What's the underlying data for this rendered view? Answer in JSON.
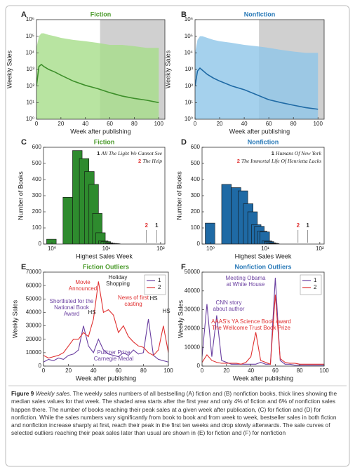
{
  "chart_data": [
    {
      "type": "line",
      "label": "A",
      "title": "Fiction",
      "title_color": "#4a9a2a",
      "xlabel": "Week after publishing",
      "ylabel": "Weekly Sales",
      "x": [
        0,
        2,
        4,
        6,
        10,
        15,
        20,
        30,
        40,
        50,
        60,
        70,
        80,
        90,
        100
      ],
      "median": [
        100,
        1500,
        2000,
        1500,
        1000,
        700,
        450,
        200,
        110,
        70,
        40,
        25,
        18,
        14,
        10
      ],
      "band": {
        "upper": [
          20000,
          100000,
          150000,
          150000,
          120000,
          100000,
          80000,
          60000,
          50000,
          40000,
          30000,
          30000,
          25000,
          20000,
          20000
        ],
        "lower": [
          1,
          1,
          1,
          1,
          1,
          1,
          1,
          1,
          1,
          1,
          1,
          1,
          1,
          1,
          1
        ]
      },
      "color": "#3d8f2a",
      "band_color": "#a6dd8a",
      "shade_from": 52,
      "shade_color": "#d0d0d0",
      "ylog": true,
      "xlim": [
        0,
        105
      ],
      "ylim": [
        1,
        1000000
      ],
      "xticks": [
        0,
        20,
        40,
        60,
        80,
        100
      ],
      "yticks": [
        {
          "value": 1,
          "label": "10⁰"
        },
        {
          "value": 10,
          "label": "10¹"
        },
        {
          "value": 100,
          "label": "10²"
        },
        {
          "value": 1000,
          "label": "10³"
        },
        {
          "value": 10000,
          "label": "10⁴"
        },
        {
          "value": 100000,
          "label": "10⁵"
        },
        {
          "value": 1000000,
          "label": "10⁶"
        }
      ]
    },
    {
      "type": "line",
      "label": "B",
      "title": "Nonfiction",
      "title_color": "#2a7ab8",
      "xlabel": "Week after publishing",
      "ylabel": "Weekly Sales",
      "x": [
        0,
        2,
        4,
        6,
        10,
        15,
        20,
        30,
        40,
        50,
        60,
        70,
        80,
        90,
        100
      ],
      "median": [
        100,
        800,
        1200,
        900,
        500,
        300,
        200,
        100,
        60,
        30,
        15,
        10,
        7,
        5,
        4
      ],
      "band": {
        "upper": [
          10000,
          60000,
          100000,
          100000,
          80000,
          60000,
          50000,
          40000,
          30000,
          25000,
          20000,
          15000,
          12000,
          10000,
          10000
        ],
        "lower": [
          1,
          1,
          1,
          1,
          1,
          1,
          1,
          1,
          1,
          1,
          1,
          1,
          1,
          1,
          1
        ]
      },
      "color": "#1f6aa5",
      "band_color": "#8ec6e8",
      "shade_from": 52,
      "shade_color": "#d0d0d0",
      "ylog": true,
      "xlim": [
        0,
        105
      ],
      "ylim": [
        1,
        1000000
      ],
      "xticks": [
        0,
        20,
        40,
        60,
        80,
        100
      ],
      "yticks": [
        {
          "value": 1,
          "label": "10⁰"
        },
        {
          "value": 10,
          "label": "10¹"
        },
        {
          "value": 100,
          "label": "10²"
        },
        {
          "value": 1000,
          "label": "10³"
        },
        {
          "value": 10000,
          "label": "10⁴"
        },
        {
          "value": 100000,
          "label": "10⁵"
        },
        {
          "value": 1000000,
          "label": "10⁶"
        }
      ]
    },
    {
      "type": "bar",
      "label": "C",
      "title": "Fiction",
      "title_color": "#4a9a2a",
      "xlabel": "Highest Sales Week",
      "ylabel": "Number of Books",
      "x": [
        1,
        2,
        3,
        4,
        5,
        6,
        7,
        8,
        9,
        10,
        11,
        12,
        13,
        14,
        15
      ],
      "values": [
        30,
        290,
        580,
        530,
        450,
        370,
        190,
        70,
        20,
        15,
        8,
        5,
        4,
        3,
        2
      ],
      "color": "#2e8b2e",
      "xlog": true,
      "xlim": [
        0.7,
        120
      ],
      "ylim": [
        0,
        600
      ],
      "xticks": [
        {
          "value": 1,
          "label": "10⁰"
        },
        {
          "value": 10,
          "label": "10¹"
        },
        {
          "value": 100,
          "label": "10²"
        }
      ],
      "yticks": [
        0,
        100,
        200,
        300,
        400,
        500,
        600
      ],
      "notes": [
        {
          "marker": "1",
          "color": "#222222",
          "text": "All The Light We Cannot See"
        },
        {
          "marker": "2",
          "color": "#e03030",
          "text": "The Help"
        }
      ],
      "highlights": [
        {
          "label": "2",
          "week": 55,
          "color": "#e03030"
        },
        {
          "label": "1",
          "week": 85,
          "color": "#333333"
        }
      ]
    },
    {
      "type": "bar",
      "label": "D",
      "title": "Nonfiction",
      "title_color": "#2a7ab8",
      "xlabel": "Highest Sales Week",
      "ylabel": "Number of Books",
      "x": [
        1,
        2,
        3,
        4,
        5,
        6,
        7,
        8,
        9,
        10,
        11,
        12,
        13,
        14,
        15
      ],
      "values": [
        130,
        370,
        350,
        330,
        250,
        200,
        120,
        110,
        80,
        75,
        20,
        15,
        8,
        5,
        3
      ],
      "color": "#1f6aa5",
      "xlog": true,
      "xlim": [
        0.7,
        120
      ],
      "ylim": [
        0,
        600
      ],
      "xticks": [
        {
          "value": 1,
          "label": "10⁰"
        },
        {
          "value": 10,
          "label": "10¹"
        },
        {
          "value": 100,
          "label": "10²"
        }
      ],
      "yticks": [
        0,
        100,
        200,
        300,
        400,
        500,
        600
      ],
      "notes": [
        {
          "marker": "1",
          "color": "#222222",
          "text": "Humans Of New York"
        },
        {
          "marker": "2",
          "color": "#e03030",
          "text": "The Immortal Life Of Henrietta Lacks"
        }
      ],
      "highlights": [
        {
          "label": "2",
          "week": 40,
          "color": "#e03030"
        },
        {
          "label": "1",
          "week": 60,
          "color": "#333333"
        }
      ]
    },
    {
      "type": "line",
      "label": "E",
      "title": "Fiction Outliers",
      "title_color": "#4a9a2a",
      "xlabel": "Week after publishing",
      "ylabel": "Weekly Sales",
      "x": [
        0,
        4,
        8,
        12,
        16,
        20,
        24,
        28,
        32,
        36,
        40,
        44,
        48,
        52,
        56,
        60,
        64,
        68,
        72,
        76,
        80,
        84,
        88,
        92,
        96,
        100
      ],
      "series": [
        {
          "name": "1",
          "color": "#6a3fa0",
          "values": [
            3000,
            5000,
            4000,
            6000,
            5000,
            8000,
            9000,
            12000,
            30000,
            15000,
            10000,
            20000,
            12000,
            9000,
            8000,
            7000,
            10000,
            8000,
            12000,
            9000,
            10000,
            35000,
            8000,
            5000,
            4000,
            3000
          ]
        },
        {
          "name": "2",
          "color": "#e03030",
          "values": [
            8000,
            6000,
            7000,
            8000,
            10000,
            15000,
            20000,
            20000,
            25000,
            22000,
            35000,
            63000,
            40000,
            42000,
            38000,
            25000,
            30000,
            22000,
            18000,
            15000,
            14000,
            10000,
            8000,
            12000,
            30000,
            10000
          ]
        }
      ],
      "xlim": [
        0,
        100
      ],
      "ylim": [
        0,
        70000
      ],
      "xticks": [
        0,
        20,
        40,
        60,
        80,
        100
      ],
      "yticks": [
        0,
        10000,
        20000,
        30000,
        40000,
        50000,
        60000,
        70000
      ],
      "legend": "upper right",
      "annotations": [
        {
          "text": [
            "Movie",
            "Announced"
          ],
          "color": "#e03030"
        },
        {
          "text": [
            "Holiday",
            "Shopping"
          ],
          "color": "#222222"
        },
        {
          "text": [
            "Shortlisted for the",
            "National Book",
            "Award"
          ],
          "color": "#6a3fa0"
        },
        {
          "text": [
            "HS"
          ],
          "color": "#222222"
        },
        {
          "text": [
            "News of first",
            "casting"
          ],
          "color": "#e03030"
        },
        {
          "text": [
            "HS"
          ],
          "color": "#222222"
        },
        {
          "text": [
            "HS"
          ],
          "color": "#222222"
        },
        {
          "text": [
            "Pulitzer Prize",
            "Carnegie Medal"
          ],
          "color": "#6a3fa0"
        }
      ]
    },
    {
      "type": "line",
      "label": "F",
      "title": "Nonfiction Outliers",
      "title_color": "#2a7ab8",
      "xlabel": "Week after publishing",
      "ylabel": "Weekly Sales",
      "x": [
        0,
        4,
        8,
        12,
        16,
        20,
        24,
        28,
        32,
        36,
        40,
        44,
        48,
        52,
        56,
        60,
        64,
        68,
        72,
        76,
        80,
        84,
        88,
        92,
        96,
        100
      ],
      "series": [
        {
          "name": "1",
          "color": "#6a3fa0",
          "values": [
            5000,
            33000,
            5000,
            27000,
            3000,
            2000,
            1000,
            1000,
            1000,
            1000,
            1000,
            1000,
            2000,
            1000,
            1000,
            47000,
            3000,
            1000,
            1000,
            500,
            500,
            500,
            500,
            500,
            500,
            500
          ]
        },
        {
          "name": "2",
          "color": "#e03030",
          "values": [
            2000,
            6000,
            3000,
            2000,
            1500,
            1500,
            1500,
            1500,
            1000,
            2000,
            5000,
            18000,
            3000,
            2000,
            1000,
            38000,
            4000,
            2000,
            1500,
            1500,
            1000,
            1000,
            1000,
            1000,
            1000,
            1000
          ]
        }
      ],
      "xlim": [
        0,
        100
      ],
      "ylim": [
        0,
        50000
      ],
      "xticks": [
        0,
        20,
        40,
        60,
        80,
        100
      ],
      "yticks": [
        0,
        10000,
        20000,
        30000,
        40000,
        50000
      ],
      "legend": "upper right",
      "annotations": [
        {
          "text": [
            "Meeting Obama",
            "at White House"
          ],
          "color": "#6a3fa0"
        },
        {
          "text": [
            "CNN story",
            "about author"
          ],
          "color": "#6a3fa0"
        },
        {
          "text": [
            "AAAS's YA Science Book award",
            "The Wellcome Trust Book Prize"
          ],
          "color": "#e03030"
        }
      ]
    }
  ],
  "caption": {
    "label": "Figure 9",
    "title": "Weekly sales.",
    "text": "The weekly sales numbers of all bestselling (A) fiction and (B) nonfiction books, thick lines showing the median sales values for that week. The shaded area starts after the first year and only 4% of fiction and 6% of nonfiction sales happen there. The number of books reaching their peak sales at a given week after publication, (C) for fiction and (D) for nonfiction. While the sales numbers vary significantly from book to book and from week to week, bestseller sales in both fiction and nonfiction increase sharply at first, reach their peak in the first ten weeks and drop slowly afterwards. The sale curves of selected outliers reaching their peak sales later than usual are shown in (E) for fiction and (F) for nonfiction"
  }
}
